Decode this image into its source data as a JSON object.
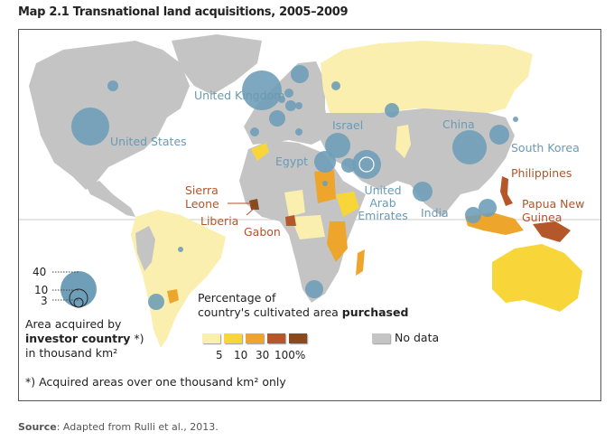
{
  "title": "Map 2.1 Transnational land acquisitions, 2005–2009",
  "countries": {
    "united_kingdom": "United Kingdom",
    "united_states": "United States",
    "israel": "Israel",
    "egypt": "Egypt",
    "uae": "United Arab Emirates",
    "china": "China",
    "south_korea": "South Korea",
    "india": "India",
    "sierra_leone": "Sierra Leone",
    "liberia": "Liberia",
    "gabon": "Gabon",
    "philippines": "Philippines",
    "papua_new_guinea": "Papua New Guinea"
  },
  "bubble_legend": {
    "values": [
      "40",
      "10",
      "3"
    ],
    "caption_line1": "Area acquired by",
    "caption_bold": "investor country",
    "caption_star": "*)",
    "caption_line3": "in thousand km²"
  },
  "color_legend": {
    "title_line1": "Percentage of",
    "title_line2": "country's cultivated area ",
    "title_bold": "purchased",
    "breaks": [
      "5",
      "10",
      "30",
      "100%"
    ],
    "colors": [
      "#fbefb0",
      "#f8d63a",
      "#eea52c",
      "#b4572b",
      "#8a4a1e"
    ],
    "no_data_label": "No data",
    "no_data_color": "#c4c4c4",
    "bubble_color": "#6f9fb8"
  },
  "footnote": "*) Acquired areas over one thousand km² only",
  "source": {
    "label": "Source",
    "text": ": Adapted from Rulli et al., 2013."
  }
}
